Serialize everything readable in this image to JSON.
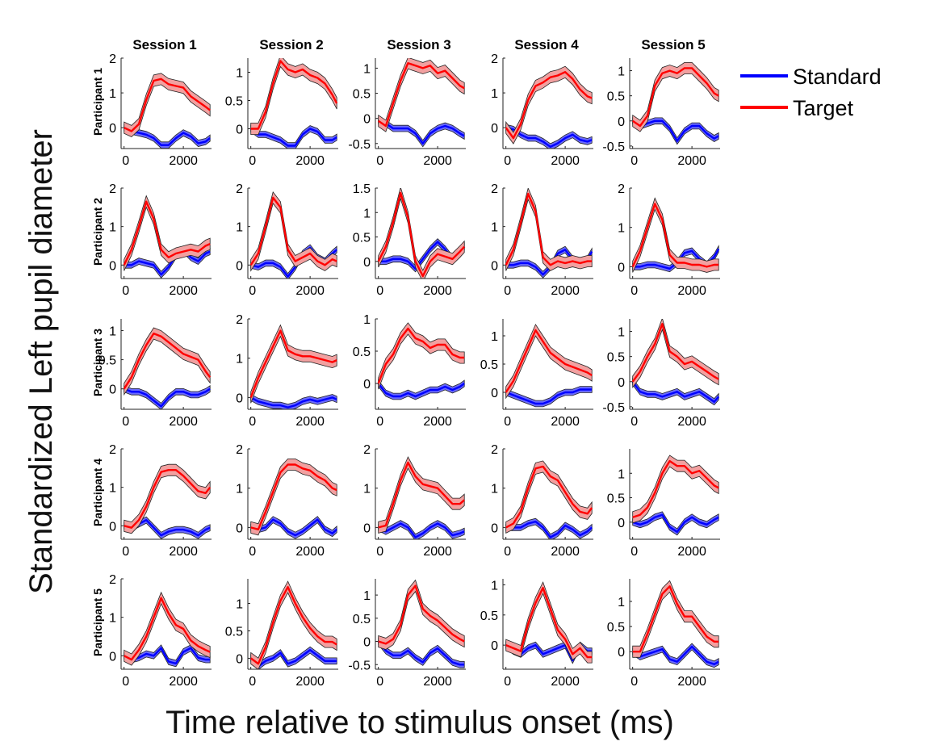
{
  "figure": {
    "ylabel": "Standardized Left pupil diameter",
    "xlabel": "Time relative to stimulus onset (ms)"
  },
  "legend": {
    "items": [
      {
        "label": "Standard",
        "color": "#0000ff"
      },
      {
        "label": "Target",
        "color": "#ff0000"
      }
    ]
  },
  "colors": {
    "standard_line": "#0000ff",
    "standard_band": "#6b6bff",
    "target_line": "#ff0000",
    "target_band": "#f2a0a0"
  },
  "chart_data": {
    "type": "line",
    "x_unit": "ms",
    "xlim": [
      -100,
      2950
    ],
    "x_ticks": [
      0,
      2000
    ],
    "sessions": [
      "Session 1",
      "Session 2",
      "Session 3",
      "Session 4",
      "Session 5"
    ],
    "participants": [
      "Participant 1",
      "Participant 2",
      "Participant 3",
      "Participant 4",
      "Participant 5"
    ],
    "series_names": [
      "Standard",
      "Target"
    ],
    "x": [
      0,
      250,
      500,
      750,
      1000,
      1250,
      1500,
      1750,
      2000,
      2250,
      2500,
      2750,
      2900
    ],
    "panels": [
      {
        "participant": "Participant 1",
        "session": "Session 1",
        "ylim": [
          -0.6,
          2
        ],
        "y_ticks": [
          0,
          1,
          2
        ],
        "standard": [
          0,
          -0.1,
          -0.15,
          -0.2,
          -0.3,
          -0.5,
          -0.5,
          -0.3,
          -0.15,
          -0.25,
          -0.45,
          -0.4,
          -0.3
        ],
        "target": [
          0,
          -0.1,
          0.1,
          0.8,
          1.35,
          1.4,
          1.25,
          1.2,
          1.15,
          0.9,
          0.75,
          0.6,
          0.5
        ]
      },
      {
        "participant": "Participant 1",
        "session": "Session 2",
        "ylim": [
          -0.35,
          1.25
        ],
        "y_ticks": [
          0,
          0.5,
          1
        ],
        "standard": [
          0,
          -0.1,
          -0.1,
          -0.15,
          -0.2,
          -0.3,
          -0.3,
          -0.1,
          0,
          -0.05,
          -0.2,
          -0.2,
          -0.15
        ],
        "target": [
          0,
          0,
          0.3,
          0.8,
          1.2,
          1.05,
          1.0,
          1.05,
          0.95,
          0.9,
          0.8,
          0.6,
          0.45
        ]
      },
      {
        "participant": "Participant 1",
        "session": "Session 3",
        "ylim": [
          -0.6,
          1.2
        ],
        "y_ticks": [
          -0.5,
          0,
          0.5,
          1
        ],
        "standard": [
          -0.05,
          -0.1,
          -0.2,
          -0.2,
          -0.2,
          -0.3,
          -0.5,
          -0.3,
          -0.2,
          -0.15,
          -0.2,
          -0.3,
          -0.35
        ],
        "target": [
          -0.05,
          -0.15,
          0.3,
          0.75,
          1.1,
          1.05,
          1.0,
          1.05,
          0.9,
          0.95,
          0.8,
          0.65,
          0.6
        ]
      },
      {
        "participant": "Participant 1",
        "session": "Session 4",
        "ylim": [
          -0.6,
          2
        ],
        "y_ticks": [
          0,
          1,
          2
        ],
        "standard": [
          0,
          -0.05,
          -0.2,
          -0.3,
          -0.3,
          -0.4,
          -0.55,
          -0.45,
          -0.3,
          -0.2,
          -0.35,
          -0.4,
          -0.35
        ],
        "target": [
          0,
          -0.3,
          0.1,
          0.8,
          1.2,
          1.3,
          1.45,
          1.5,
          1.6,
          1.4,
          1.1,
          0.9,
          0.85
        ]
      },
      {
        "participant": "Participant 1",
        "session": "Session 5",
        "ylim": [
          -0.55,
          1.25
        ],
        "y_ticks": [
          -0.5,
          0,
          0.5,
          1
        ],
        "standard": [
          0,
          -0.1,
          -0.05,
          0,
          0,
          -0.15,
          -0.4,
          -0.2,
          -0.1,
          -0.1,
          -0.25,
          -0.35,
          -0.3
        ],
        "target": [
          0,
          -0.1,
          0.1,
          0.7,
          0.95,
          1.0,
          0.95,
          1.05,
          1.05,
          0.9,
          0.75,
          0.55,
          0.5
        ]
      },
      {
        "participant": "Participant 2",
        "session": "Session 1",
        "ylim": [
          -0.35,
          2
        ],
        "y_ticks": [
          0,
          1,
          2
        ],
        "standard": [
          0,
          0,
          0.1,
          0.05,
          0.0,
          -0.25,
          -0.05,
          0.25,
          0.4,
          0.2,
          0.1,
          0.3,
          0.35
        ],
        "target": [
          0,
          0.4,
          1.0,
          1.65,
          1.2,
          0.4,
          0.2,
          0.3,
          0.35,
          0.4,
          0.35,
          0.5,
          0.55
        ]
      },
      {
        "participant": "Participant 2",
        "session": "Session 2",
        "ylim": [
          -0.35,
          2
        ],
        "y_ticks": [
          0,
          1,
          2
        ],
        "standard": [
          0,
          -0.05,
          0.05,
          0.05,
          -0.05,
          -0.3,
          -0.05,
          0.3,
          0.45,
          0.2,
          0.1,
          0.3,
          0.4
        ],
        "target": [
          0,
          0.3,
          1.0,
          1.75,
          1.5,
          0.4,
          0.1,
          0.2,
          0.3,
          0.1,
          0,
          0.15,
          0.1
        ]
      },
      {
        "participant": "Participant 2",
        "session": "Session 3",
        "ylim": [
          -0.35,
          1.5
        ],
        "y_ticks": [
          0,
          0.5,
          1,
          1.5
        ],
        "standard": [
          0,
          0,
          0.05,
          0.05,
          0,
          -0.15,
          0.05,
          0.25,
          0.4,
          0.25,
          0.05,
          0.15,
          0.3
        ],
        "target": [
          0,
          0.3,
          0.8,
          1.4,
          0.9,
          0,
          -0.3,
          0,
          0.15,
          0.1,
          0.05,
          0.2,
          0.3
        ]
      },
      {
        "participant": "Participant 2",
        "session": "Session 4",
        "ylim": [
          -0.35,
          2
        ],
        "y_ticks": [
          0,
          1,
          2
        ],
        "standard": [
          0,
          0,
          0.05,
          0.05,
          -0.05,
          -0.25,
          -0.05,
          0.3,
          0.4,
          0.15,
          0,
          0.15,
          0.35
        ],
        "target": [
          0,
          0.4,
          1.1,
          1.85,
          1.4,
          0.2,
          0,
          0.1,
          0.05,
          0.1,
          0.05,
          0.1,
          0.1
        ]
      },
      {
        "participant": "Participant 2",
        "session": "Session 5",
        "ylim": [
          -0.3,
          2
        ],
        "y_ticks": [
          0,
          1,
          2
        ],
        "standard": [
          0,
          0,
          0.05,
          0.05,
          0,
          -0.05,
          0.1,
          0.35,
          0.4,
          0.2,
          0.05,
          0.25,
          0.45
        ],
        "target": [
          0,
          0.4,
          1.0,
          1.6,
          1.2,
          0.3,
          0.1,
          0.1,
          0.05,
          0.05,
          0,
          0.05,
          0.05
        ]
      },
      {
        "participant": "Participant 3",
        "session": "Session 1",
        "ylim": [
          -0.35,
          1.2
        ],
        "y_ticks": [
          0,
          0.5,
          1
        ],
        "standard": [
          0,
          -0.05,
          -0.05,
          -0.1,
          -0.2,
          -0.3,
          -0.15,
          -0.05,
          -0.05,
          -0.1,
          -0.1,
          -0.05,
          0
        ],
        "target": [
          0,
          0.2,
          0.5,
          0.75,
          0.95,
          0.9,
          0.8,
          0.7,
          0.6,
          0.55,
          0.5,
          0.3,
          0.2
        ]
      },
      {
        "participant": "Participant 3",
        "session": "Session 2",
        "ylim": [
          -0.3,
          2
        ],
        "y_ticks": [
          0,
          1,
          2
        ],
        "standard": [
          0,
          -0.1,
          -0.15,
          -0.2,
          -0.2,
          -0.25,
          -0.2,
          -0.1,
          -0.05,
          -0.1,
          -0.05,
          0,
          -0.05
        ],
        "target": [
          0,
          0.5,
          0.9,
          1.3,
          1.7,
          1.2,
          1.1,
          1.05,
          1.05,
          1.0,
          0.95,
          0.9,
          0.95
        ]
      },
      {
        "participant": "Participant 3",
        "session": "Session 3",
        "ylim": [
          -0.4,
          1.0
        ],
        "y_ticks": [
          0,
          0.5,
          1
        ],
        "standard": [
          0,
          -0.15,
          -0.2,
          -0.2,
          -0.15,
          -0.2,
          -0.15,
          -0.1,
          -0.1,
          -0.05,
          -0.1,
          -0.05,
          0
        ],
        "target": [
          0,
          0.3,
          0.45,
          0.7,
          0.85,
          0.7,
          0.65,
          0.55,
          0.6,
          0.6,
          0.45,
          0.4,
          0.4
        ]
      },
      {
        "participant": "Participant 3",
        "session": "Session 4",
        "ylim": [
          -0.3,
          1.3
        ],
        "y_ticks": [
          0,
          0.5,
          1
        ],
        "standard": [
          0,
          -0.05,
          -0.1,
          -0.15,
          -0.2,
          -0.2,
          -0.15,
          -0.05,
          0,
          0,
          0.05,
          0.05,
          0.05
        ],
        "target": [
          0,
          0.2,
          0.5,
          0.8,
          1.1,
          0.9,
          0.7,
          0.6,
          0.5,
          0.45,
          0.4,
          0.35,
          0.3
        ]
      },
      {
        "participant": "Participant 3",
        "session": "Session 5",
        "ylim": [
          -0.55,
          1.25
        ],
        "y_ticks": [
          -0.5,
          0,
          0.5,
          1
        ],
        "standard": [
          0,
          -0.2,
          -0.25,
          -0.25,
          -0.3,
          -0.25,
          -0.2,
          -0.3,
          -0.25,
          -0.2,
          -0.3,
          -0.4,
          -0.3
        ],
        "target": [
          0,
          0.2,
          0.5,
          0.75,
          1.15,
          0.6,
          0.5,
          0.35,
          0.4,
          0.3,
          0.2,
          0.1,
          0.05
        ]
      },
      {
        "participant": "Participant 4",
        "session": "Session 1",
        "ylim": [
          -0.35,
          2
        ],
        "y_ticks": [
          0,
          1,
          2
        ],
        "standard": [
          0,
          -0.05,
          0.05,
          0.15,
          -0.05,
          -0.25,
          -0.15,
          -0.1,
          -0.1,
          -0.15,
          -0.25,
          -0.1,
          -0.05
        ],
        "target": [
          0,
          -0.05,
          0.15,
          0.5,
          1.0,
          1.4,
          1.45,
          1.45,
          1.3,
          1.1,
          0.9,
          0.85,
          1.0
        ]
      },
      {
        "participant": "Participant 4",
        "session": "Session 2",
        "ylim": [
          -0.3,
          2
        ],
        "y_ticks": [
          0,
          1,
          2
        ],
        "standard": [
          0,
          -0.05,
          0,
          0.2,
          0.1,
          -0.1,
          -0.2,
          -0.1,
          0.05,
          0.2,
          -0.05,
          -0.15,
          -0.05
        ],
        "target": [
          0,
          -0.05,
          0.4,
          0.9,
          1.4,
          1.6,
          1.6,
          1.5,
          1.45,
          1.3,
          1.2,
          1.0,
          0.95
        ]
      },
      {
        "participant": "Participant 4",
        "session": "Session 3",
        "ylim": [
          -0.3,
          2
        ],
        "y_ticks": [
          0,
          1,
          2
        ],
        "standard": [
          0,
          -0.1,
          0,
          0.1,
          0,
          -0.25,
          -0.15,
          0,
          0.1,
          0,
          -0.2,
          -0.15,
          -0.1
        ],
        "target": [
          0,
          0.05,
          0.6,
          1.2,
          1.65,
          1.3,
          1.1,
          1.05,
          1.0,
          0.8,
          0.6,
          0.6,
          0.7
        ]
      },
      {
        "participant": "Participant 4",
        "session": "Session 4",
        "ylim": [
          -0.3,
          2
        ],
        "y_ticks": [
          0,
          1,
          2
        ],
        "standard": [
          0,
          0,
          0,
          0.1,
          0.15,
          0,
          -0.25,
          -0.15,
          0.05,
          -0.05,
          -0.2,
          -0.1,
          0
        ],
        "target": [
          0,
          0.1,
          0.4,
          1.0,
          1.5,
          1.55,
          1.3,
          1.2,
          0.9,
          0.6,
          0.4,
          0.35,
          0.5
        ]
      },
      {
        "participant": "Participant 4",
        "session": "Session 5",
        "ylim": [
          -0.35,
          1.5
        ],
        "y_ticks": [
          0,
          0.5,
          1
        ],
        "standard": [
          0,
          -0.05,
          0,
          0.1,
          0.15,
          -0.1,
          -0.2,
          0,
          0.1,
          0,
          -0.05,
          0.05,
          0.1
        ],
        "target": [
          0.1,
          0.15,
          0.3,
          0.6,
          1.0,
          1.25,
          1.15,
          1.15,
          1.0,
          1.05,
          0.9,
          0.75,
          0.7
        ]
      },
      {
        "participant": "Participant 5",
        "session": "Session 1",
        "ylim": [
          -0.35,
          2
        ],
        "y_ticks": [
          0,
          1,
          2
        ],
        "standard": [
          0,
          -0.1,
          -0.05,
          0.05,
          0,
          0.2,
          -0.15,
          -0.2,
          0.1,
          0.2,
          -0.05,
          -0.1,
          -0.1
        ],
        "target": [
          0,
          -0.1,
          0.15,
          0.5,
          1.0,
          1.5,
          1.1,
          0.8,
          0.7,
          0.4,
          0.25,
          0.15,
          0.1
        ]
      },
      {
        "participant": "Participant 5",
        "session": "Session 2",
        "ylim": [
          -0.2,
          1.45
        ],
        "y_ticks": [
          0,
          0.5,
          1
        ],
        "standard": [
          0,
          -0.15,
          -0.05,
          0,
          0.1,
          -0.1,
          -0.05,
          0.05,
          0.15,
          0.05,
          -0.05,
          -0.05,
          -0.05
        ],
        "target": [
          0,
          -0.1,
          0.2,
          0.65,
          1.05,
          1.3,
          1.0,
          0.75,
          0.55,
          0.4,
          0.3,
          0.3,
          0.25
        ]
      },
      {
        "participant": "Participant 5",
        "session": "Session 3",
        "ylim": [
          -0.6,
          1.35
        ],
        "y_ticks": [
          -0.5,
          0,
          0.5,
          1
        ],
        "standard": [
          0,
          -0.2,
          -0.3,
          -0.3,
          -0.2,
          -0.35,
          -0.45,
          -0.25,
          -0.15,
          -0.3,
          -0.45,
          -0.5,
          -0.5
        ],
        "target": [
          0,
          -0.05,
          0.05,
          0.35,
          1.0,
          1.2,
          0.7,
          0.55,
          0.45,
          0.3,
          0.15,
          0.05,
          0
        ]
      },
      {
        "participant": "Participant 5",
        "session": "Session 4",
        "ylim": [
          -0.4,
          1.1
        ],
        "y_ticks": [
          0,
          0.5,
          1
        ],
        "standard": [
          0,
          -0.1,
          -0.15,
          -0.05,
          0,
          -0.15,
          -0.1,
          -0.05,
          0,
          -0.25,
          0.0,
          -0.1,
          -0.1
        ],
        "target": [
          0,
          -0.05,
          -0.1,
          0.35,
          0.7,
          0.95,
          0.6,
          0.25,
          0.1,
          -0.15,
          -0.05,
          -0.2,
          -0.2
        ]
      },
      {
        "participant": "Participant 5",
        "session": "Session 5",
        "ylim": [
          -0.35,
          1.45
        ],
        "y_ticks": [
          0,
          0.5,
          1
        ],
        "standard": [
          0,
          -0.1,
          -0.05,
          0,
          0.05,
          -0.15,
          -0.2,
          -0.05,
          0.1,
          -0.05,
          -0.2,
          -0.25,
          -0.2
        ],
        "target": [
          0,
          0,
          0.35,
          0.75,
          1.15,
          1.3,
          0.95,
          0.7,
          0.7,
          0.5,
          0.3,
          0.2,
          0.2
        ]
      }
    ]
  }
}
